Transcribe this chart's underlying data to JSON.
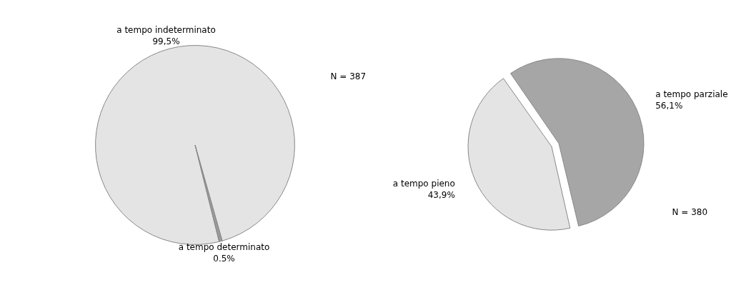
{
  "chart_data": [
    {
      "type": "pie",
      "categories": [
        "a tempo indeterminato",
        "a tempo determinato"
      ],
      "values": [
        99.5,
        0.5
      ],
      "value_labels": [
        "99,5%",
        "0.5%"
      ],
      "colors": [
        "#e4e4e4",
        "#9a9a9a"
      ],
      "annotations": [
        "N = 387"
      ]
    },
    {
      "type": "pie",
      "categories": [
        "a tempo parziale",
        "a tempo pieno"
      ],
      "values": [
        56.1,
        43.9
      ],
      "value_labels": [
        "56,1%",
        "43,9%"
      ],
      "colors": [
        "#a6a6a6",
        "#e4e4e4"
      ],
      "annotations": [
        "N = 380"
      ]
    }
  ]
}
